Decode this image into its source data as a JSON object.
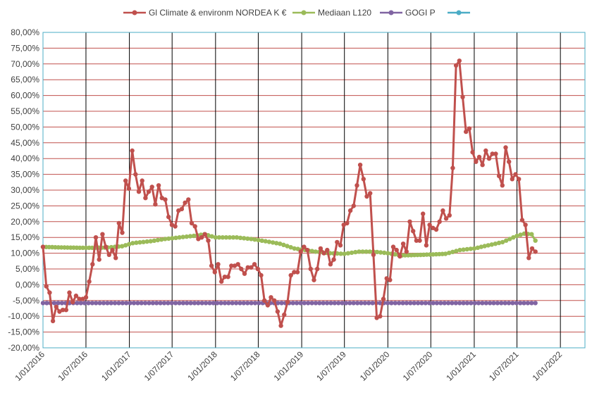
{
  "chart_data": {
    "type": "line",
    "x_ticks": [
      "1/01/2016",
      "1/07/2016",
      "1/01/2017",
      "1/07/2017",
      "1/01/2018",
      "1/07/2018",
      "1/01/2019",
      "1/07/2019",
      "1/01/2020",
      "1/07/2020",
      "1/01/2021",
      "1/07/2021",
      "1/01/2022"
    ],
    "y_ticks": [
      "80,00%",
      "75,00%",
      "70,00%",
      "65,00%",
      "60,00%",
      "55,00%",
      "50,00%",
      "45,00%",
      "40,00%",
      "35,00%",
      "30,00%",
      "25,00%",
      "20,00%",
      "15,00%",
      "10,00%",
      "5,00%",
      "0,00%",
      "-5,00%",
      "-10,00%",
      "-15,00%",
      "-20,00%"
    ],
    "ylim": [
      -20,
      80
    ],
    "xlim": [
      "2016-01-01",
      "2022-04-15"
    ],
    "grid": "horizontal red lines, vertical lines at each tick",
    "legend": "top",
    "series": [
      {
        "name": "Gl Climate & environm NORDEA K €",
        "color": "#C0504D",
        "points": [
          [
            "2016-01-01",
            12.0
          ],
          [
            "2016-01-15",
            -0.5
          ],
          [
            "2016-01-29",
            -2.5
          ],
          [
            "2016-02-12",
            -11.5
          ],
          [
            "2016-02-26",
            -7.0
          ],
          [
            "2016-03-11",
            -8.5
          ],
          [
            "2016-03-25",
            -8.0
          ],
          [
            "2016-04-08",
            -8.0
          ],
          [
            "2016-04-22",
            -2.5
          ],
          [
            "2016-05-06",
            -5.5
          ],
          [
            "2016-05-20",
            -3.5
          ],
          [
            "2016-06-03",
            -4.5
          ],
          [
            "2016-06-17",
            -4.5
          ],
          [
            "2016-07-01",
            -4.0
          ],
          [
            "2016-07-15",
            1.0
          ],
          [
            "2016-07-29",
            6.5
          ],
          [
            "2016-08-12",
            15.0
          ],
          [
            "2016-08-26",
            8.0
          ],
          [
            "2016-09-09",
            16.0
          ],
          [
            "2016-09-23",
            12.0
          ],
          [
            "2016-10-07",
            9.5
          ],
          [
            "2016-10-21",
            11.0
          ],
          [
            "2016-11-04",
            8.5
          ],
          [
            "2016-11-18",
            19.5
          ],
          [
            "2016-12-02",
            16.5
          ],
          [
            "2016-12-16",
            33.0
          ],
          [
            "2016-12-30",
            30.5
          ],
          [
            "2017-01-13",
            42.5
          ],
          [
            "2017-01-27",
            35.0
          ],
          [
            "2017-02-10",
            29.5
          ],
          [
            "2017-02-24",
            33.0
          ],
          [
            "2017-03-10",
            27.5
          ],
          [
            "2017-03-24",
            29.5
          ],
          [
            "2017-04-07",
            31.0
          ],
          [
            "2017-04-21",
            25.5
          ],
          [
            "2017-05-05",
            31.5
          ],
          [
            "2017-05-19",
            27.5
          ],
          [
            "2017-06-02",
            27.0
          ],
          [
            "2017-06-16",
            21.5
          ],
          [
            "2017-06-30",
            19.0
          ],
          [
            "2017-07-14",
            18.5
          ],
          [
            "2017-07-28",
            23.5
          ],
          [
            "2017-08-11",
            24.0
          ],
          [
            "2017-08-25",
            26.0
          ],
          [
            "2017-09-08",
            27.0
          ],
          [
            "2017-09-22",
            19.5
          ],
          [
            "2017-10-06",
            18.5
          ],
          [
            "2017-10-20",
            14.5
          ],
          [
            "2017-11-03",
            15.0
          ],
          [
            "2017-11-17",
            16.0
          ],
          [
            "2017-12-01",
            14.0
          ],
          [
            "2017-12-15",
            6.0
          ],
          [
            "2017-12-29",
            4.0
          ],
          [
            "2018-01-12",
            6.5
          ],
          [
            "2018-01-26",
            1.0
          ],
          [
            "2018-02-09",
            2.5
          ],
          [
            "2018-02-23",
            2.5
          ],
          [
            "2018-03-09",
            6.0
          ],
          [
            "2018-03-23",
            6.0
          ],
          [
            "2018-04-06",
            6.5
          ],
          [
            "2018-04-20",
            5.0
          ],
          [
            "2018-05-04",
            3.5
          ],
          [
            "2018-05-18",
            5.5
          ],
          [
            "2018-06-01",
            5.5
          ],
          [
            "2018-06-15",
            6.5
          ],
          [
            "2018-06-29",
            5.0
          ],
          [
            "2018-07-13",
            3.0
          ],
          [
            "2018-07-27",
            -5.0
          ],
          [
            "2018-08-10",
            -6.5
          ],
          [
            "2018-08-24",
            -4.0
          ],
          [
            "2018-09-07",
            -5.0
          ],
          [
            "2018-09-21",
            -8.5
          ],
          [
            "2018-10-05",
            -13.0
          ],
          [
            "2018-10-19",
            -9.5
          ],
          [
            "2018-11-02",
            -5.5
          ],
          [
            "2018-11-16",
            3.0
          ],
          [
            "2018-11-30",
            4.0
          ],
          [
            "2018-12-14",
            4.0
          ],
          [
            "2018-12-28",
            10.5
          ],
          [
            "2019-01-11",
            12.0
          ],
          [
            "2019-01-25",
            11.0
          ],
          [
            "2019-02-08",
            5.0
          ],
          [
            "2019-02-22",
            1.5
          ],
          [
            "2019-03-08",
            5.0
          ],
          [
            "2019-03-22",
            11.5
          ],
          [
            "2019-04-05",
            10.0
          ],
          [
            "2019-04-19",
            11.0
          ],
          [
            "2019-05-03",
            6.5
          ],
          [
            "2019-05-17",
            8.0
          ],
          [
            "2019-05-31",
            13.5
          ],
          [
            "2019-06-14",
            12.5
          ],
          [
            "2019-06-28",
            19.0
          ],
          [
            "2019-07-12",
            19.5
          ],
          [
            "2019-07-26",
            23.5
          ],
          [
            "2019-08-09",
            25.0
          ],
          [
            "2019-08-23",
            31.5
          ],
          [
            "2019-09-06",
            38.0
          ],
          [
            "2019-09-20",
            33.5
          ],
          [
            "2019-10-04",
            28.0
          ],
          [
            "2019-10-18",
            29.0
          ],
          [
            "2019-11-01",
            9.5
          ],
          [
            "2019-11-15",
            -10.5
          ],
          [
            "2019-11-29",
            -10.0
          ],
          [
            "2019-12-13",
            -4.5
          ],
          [
            "2019-12-27",
            2.0
          ],
          [
            "2020-01-10",
            1.5
          ],
          [
            "2020-01-24",
            12.0
          ],
          [
            "2020-02-07",
            11.0
          ],
          [
            "2020-02-21",
            9.0
          ],
          [
            "2020-03-06",
            13.0
          ],
          [
            "2020-03-20",
            10.5
          ],
          [
            "2020-04-03",
            20.0
          ],
          [
            "2020-04-17",
            17.0
          ],
          [
            "2020-05-01",
            14.0
          ],
          [
            "2020-05-15",
            14.0
          ],
          [
            "2020-05-29",
            22.5
          ],
          [
            "2020-06-12",
            12.5
          ],
          [
            "2020-06-26",
            19.0
          ],
          [
            "2020-07-10",
            18.0
          ],
          [
            "2020-07-24",
            17.5
          ],
          [
            "2020-08-07",
            20.0
          ],
          [
            "2020-08-21",
            23.5
          ],
          [
            "2020-09-04",
            21.0
          ],
          [
            "2020-09-18",
            22.0
          ],
          [
            "2020-10-02",
            37.0
          ],
          [
            "2020-10-16",
            69.5
          ],
          [
            "2020-10-30",
            71.0
          ],
          [
            "2020-11-13",
            59.5
          ],
          [
            "2020-11-27",
            48.5
          ],
          [
            "2020-12-11",
            49.5
          ],
          [
            "2020-12-25",
            42.0
          ],
          [
            "2021-01-08",
            39.0
          ],
          [
            "2021-01-22",
            40.5
          ],
          [
            "2021-02-05",
            38.0
          ],
          [
            "2021-02-19",
            42.5
          ],
          [
            "2021-03-05",
            40.0
          ],
          [
            "2021-03-19",
            41.5
          ],
          [
            "2021-04-02",
            41.5
          ],
          [
            "2021-04-16",
            34.5
          ],
          [
            "2021-04-30",
            31.5
          ],
          [
            "2021-05-14",
            43.5
          ],
          [
            "2021-05-28",
            39.0
          ],
          [
            "2021-06-11",
            33.5
          ],
          [
            "2021-06-25",
            35.0
          ],
          [
            "2021-07-09",
            33.5
          ],
          [
            "2021-07-23",
            20.5
          ],
          [
            "2021-08-06",
            19.0
          ],
          [
            "2021-08-20",
            8.5
          ],
          [
            "2021-09-03",
            11.5
          ],
          [
            "2021-09-17",
            10.5
          ]
        ]
      },
      {
        "name": "Mediaan L120",
        "color": "#9BBB59",
        "points": [
          [
            "2016-01-01",
            12.0
          ],
          [
            "2016-04-01",
            11.8
          ],
          [
            "2016-07-01",
            11.7
          ],
          [
            "2016-10-01",
            11.8
          ],
          [
            "2016-12-01",
            12.2
          ],
          [
            "2017-01-15",
            13.2
          ],
          [
            "2017-04-01",
            13.8
          ],
          [
            "2017-06-01",
            14.5
          ],
          [
            "2017-08-01",
            15.0
          ],
          [
            "2017-10-01",
            15.5
          ],
          [
            "2017-11-15",
            16.0
          ],
          [
            "2018-01-01",
            15.0
          ],
          [
            "2018-04-01",
            15.0
          ],
          [
            "2018-06-01",
            14.5
          ],
          [
            "2018-08-01",
            13.8
          ],
          [
            "2018-10-01",
            13.0
          ],
          [
            "2018-12-01",
            11.5
          ],
          [
            "2019-03-01",
            10.5
          ],
          [
            "2019-05-01",
            10.0
          ],
          [
            "2019-07-01",
            9.8
          ],
          [
            "2019-09-01",
            10.5
          ],
          [
            "2019-11-01",
            10.5
          ],
          [
            "2020-01-01",
            10.0
          ],
          [
            "2020-03-01",
            9.3
          ],
          [
            "2020-06-01",
            9.5
          ],
          [
            "2020-09-01",
            9.8
          ],
          [
            "2020-11-01",
            11.0
          ],
          [
            "2021-01-01",
            11.5
          ],
          [
            "2021-03-01",
            12.5
          ],
          [
            "2021-05-01",
            13.5
          ],
          [
            "2021-07-01",
            15.5
          ],
          [
            "2021-08-01",
            16.2
          ],
          [
            "2021-09-01",
            16.0
          ],
          [
            "2021-09-17",
            14.0
          ]
        ]
      },
      {
        "name": "GOGI P",
        "color": "#8064A2",
        "points": [
          [
            "2016-01-01",
            -5.8
          ],
          [
            "2021-09-17",
            -5.8
          ]
        ]
      },
      {
        "name": "",
        "color": "#4BACC6",
        "points": []
      }
    ]
  }
}
